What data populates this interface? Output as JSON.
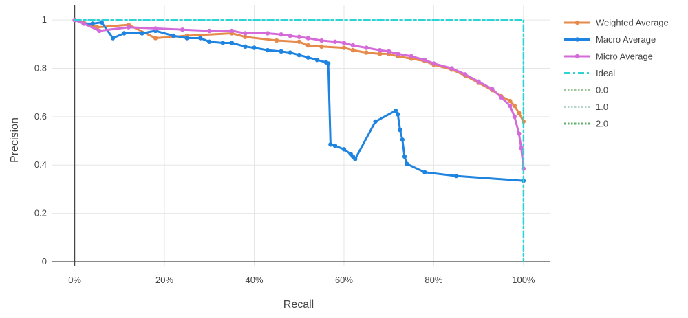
{
  "chart_data": {
    "type": "line",
    "xlabel": "Recall",
    "ylabel": "Precision",
    "xlim": [
      -0.05,
      1.06
    ],
    "ylim": [
      -0.02,
      1.06
    ],
    "x_ticks": [
      {
        "value": 0,
        "label": "0%"
      },
      {
        "value": 0.2,
        "label": "20%"
      },
      {
        "value": 0.4,
        "label": "40%"
      },
      {
        "value": 0.6,
        "label": "60%"
      },
      {
        "value": 0.8,
        "label": "80%"
      },
      {
        "value": 1.0,
        "label": "100%"
      }
    ],
    "y_ticks": [
      {
        "value": 0,
        "label": "0"
      },
      {
        "value": 0.2,
        "label": "0.2"
      },
      {
        "value": 0.4,
        "label": "0.4"
      },
      {
        "value": 0.6,
        "label": "0.6"
      },
      {
        "value": 0.8,
        "label": "0.8"
      },
      {
        "value": 1.0,
        "label": "1"
      }
    ],
    "grid": true,
    "legend_position": "right",
    "series": [
      {
        "name": "Weighted Average",
        "color": "#e58a4a",
        "style": "line+markers",
        "x": [
          0,
          0.02,
          0.05,
          0.12,
          0.18,
          0.25,
          0.35,
          0.38,
          0.45,
          0.5,
          0.52,
          0.55,
          0.6,
          0.62,
          0.65,
          0.68,
          0.7,
          0.72,
          0.75,
          0.78,
          0.8,
          0.84,
          0.87,
          0.9,
          0.93,
          0.95,
          0.97,
          0.98,
          0.99,
          1.0
        ],
        "y": [
          1.0,
          0.99,
          0.97,
          0.98,
          0.925,
          0.935,
          0.945,
          0.93,
          0.915,
          0.91,
          0.895,
          0.89,
          0.885,
          0.875,
          0.865,
          0.86,
          0.86,
          0.85,
          0.84,
          0.83,
          0.815,
          0.795,
          0.77,
          0.74,
          0.71,
          0.685,
          0.665,
          0.645,
          0.615,
          0.58
        ]
      },
      {
        "name": "Macro Average",
        "color": "#1f83e0",
        "style": "line+markers",
        "x": [
          0,
          0.02,
          0.04,
          0.06,
          0.085,
          0.11,
          0.15,
          0.18,
          0.22,
          0.25,
          0.28,
          0.3,
          0.33,
          0.35,
          0.38,
          0.4,
          0.43,
          0.46,
          0.48,
          0.5,
          0.52,
          0.54,
          0.56,
          0.565,
          0.57,
          0.58,
          0.6,
          0.615,
          0.62,
          0.625,
          0.67,
          0.715,
          0.72,
          0.725,
          0.73,
          0.735,
          0.74,
          0.78,
          0.85,
          1.0
        ],
        "y": [
          1.0,
          0.985,
          0.985,
          0.99,
          0.925,
          0.945,
          0.945,
          0.955,
          0.935,
          0.925,
          0.925,
          0.91,
          0.905,
          0.905,
          0.89,
          0.885,
          0.875,
          0.87,
          0.865,
          0.855,
          0.845,
          0.835,
          0.825,
          0.82,
          0.485,
          0.48,
          0.465,
          0.445,
          0.435,
          0.425,
          0.58,
          0.625,
          0.61,
          0.545,
          0.505,
          0.435,
          0.405,
          0.37,
          0.355,
          0.335
        ]
      },
      {
        "name": "Micro Average",
        "color": "#d46bd8",
        "style": "line+markers",
        "x": [
          0,
          0.02,
          0.055,
          0.12,
          0.18,
          0.24,
          0.3,
          0.35,
          0.38,
          0.43,
          0.46,
          0.48,
          0.5,
          0.52,
          0.55,
          0.58,
          0.6,
          0.62,
          0.65,
          0.68,
          0.7,
          0.72,
          0.75,
          0.78,
          0.8,
          0.84,
          0.87,
          0.9,
          0.93,
          0.95,
          0.97,
          0.98,
          0.99,
          0.995,
          1.0
        ],
        "y": [
          1.0,
          0.985,
          0.955,
          0.97,
          0.965,
          0.96,
          0.955,
          0.955,
          0.945,
          0.945,
          0.94,
          0.935,
          0.93,
          0.925,
          0.915,
          0.91,
          0.905,
          0.895,
          0.885,
          0.875,
          0.87,
          0.86,
          0.85,
          0.835,
          0.82,
          0.8,
          0.775,
          0.745,
          0.715,
          0.68,
          0.645,
          0.6,
          0.53,
          0.47,
          0.385
        ]
      },
      {
        "name": "Ideal",
        "color": "#2ed4d4",
        "style": "dashdot",
        "x": [
          0,
          1.0,
          1.0
        ],
        "y": [
          1.0,
          1.0,
          0.0
        ]
      },
      {
        "name": "0.0",
        "color": "#9cc79a",
        "style": "dot",
        "x": [],
        "y": []
      },
      {
        "name": "1.0",
        "color": "#b7d4cc",
        "style": "dot",
        "x": [],
        "y": []
      },
      {
        "name": "2.0",
        "color": "#5fae6a",
        "style": "dot",
        "x": [],
        "y": []
      }
    ]
  }
}
